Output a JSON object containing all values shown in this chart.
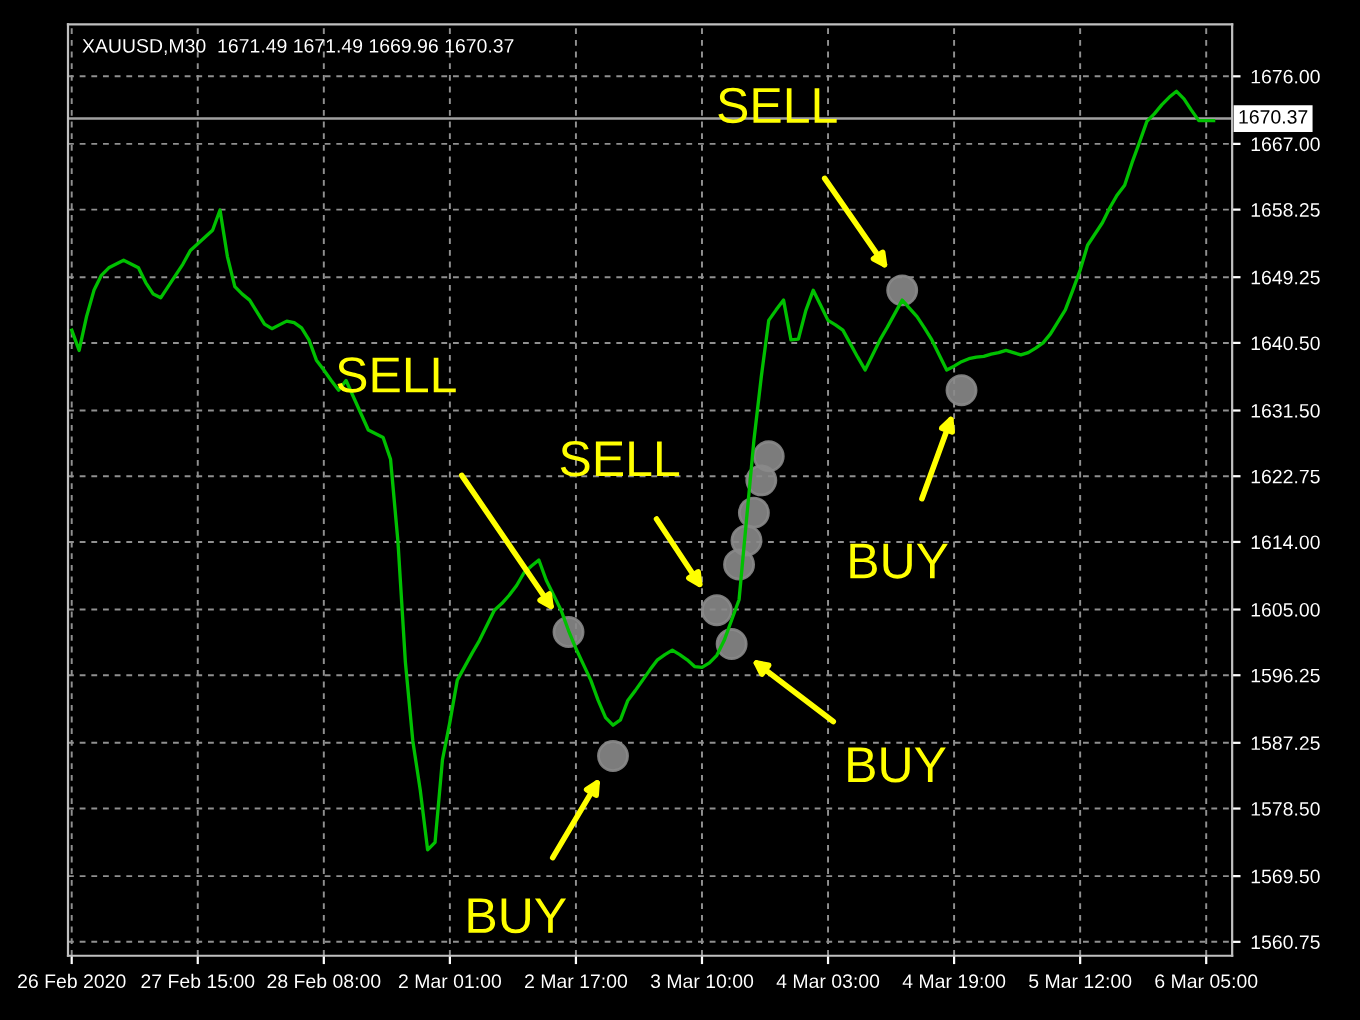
{
  "chart_data": {
    "type": "line",
    "title": "XAUUSD,M30  1671.49 1671.49 1669.96 1670.37",
    "categories": [
      "26 Feb 2020",
      null,
      null,
      null,
      null,
      null,
      null,
      null,
      null,
      null,
      null,
      null,
      null,
      null,
      null,
      null,
      null,
      "27 Feb 15:00",
      null,
      null,
      null,
      null,
      null,
      null,
      null,
      null,
      null,
      null,
      null,
      null,
      null,
      null,
      null,
      null,
      "28 Feb 08:00",
      null,
      null,
      null,
      null,
      null,
      null,
      null,
      null,
      null,
      null,
      null,
      null,
      null,
      null,
      null,
      null,
      "2 Mar 01:00",
      null,
      null,
      null,
      null,
      null,
      null,
      null,
      null,
      null,
      null,
      null,
      null,
      null,
      null,
      null,
      null,
      "2 Mar 17:00",
      null,
      null,
      null,
      null,
      null,
      null,
      null,
      null,
      null,
      null,
      null,
      null,
      null,
      null,
      null,
      null,
      "3 Mar 10:00",
      null,
      null,
      null,
      null,
      null,
      null,
      null,
      null,
      null,
      null,
      null,
      null,
      null,
      null,
      null,
      null,
      "4 Mar 03:00",
      null,
      null,
      null,
      null,
      null,
      null,
      null,
      null,
      null,
      null,
      null,
      null,
      null,
      null,
      null,
      null,
      "4 Mar 19:00",
      null,
      null,
      null,
      null,
      null,
      null,
      null,
      null,
      null,
      null,
      null,
      null,
      null,
      null,
      null,
      null,
      "5 Mar 12:00",
      null,
      null,
      null,
      null,
      null,
      null,
      null,
      null,
      null,
      null,
      null,
      null,
      null,
      null,
      null,
      null,
      "6 Mar 05:00",
      null,
      null
    ],
    "ylim": [
      1558.9,
      1682.9
    ],
    "yticks": [
      {
        "value": 1560.75,
        "label": "1560.75"
      },
      {
        "value": 1569.5,
        "label": "1569.50"
      },
      {
        "value": 1578.5,
        "label": "1578.50"
      },
      {
        "value": 1587.25,
        "label": "1587.25"
      },
      {
        "value": 1596.25,
        "label": "1596.25"
      },
      {
        "value": 1605,
        "label": "1605.00"
      },
      {
        "value": 1614,
        "label": "1614.00"
      },
      {
        "value": 1622.75,
        "label": "1622.75"
      },
      {
        "value": 1631.5,
        "label": "1631.50"
      },
      {
        "value": 1640.5,
        "label": "1640.50"
      },
      {
        "value": 1649.25,
        "label": "1649.25"
      },
      {
        "value": 1658.25,
        "label": "1658.25"
      },
      {
        "value": 1667,
        "label": "1667.00"
      },
      {
        "value": 1676,
        "label": "1676.00"
      }
    ],
    "grid": true,
    "line_style": "solid",
    "series": [
      {
        "color": "#00c000",
        "values": [
          1642.2,
          1639.5,
          1644,
          1647.5,
          1649.5,
          1650.5,
          1651,
          1651.5,
          1651,
          1650.5,
          1648.5,
          1647,
          1646.5,
          1648,
          1649.5,
          1651,
          1652.8,
          1653.7,
          1654.6,
          1655.5,
          1658.2,
          1652,
          1648,
          1647,
          1646.2,
          1644.6,
          1643,
          1642.4,
          1642.9,
          1643.4,
          1643.2,
          1642.5,
          1640.9,
          1638.2,
          1636.9,
          1635.5,
          1634.2,
          1635.5,
          1633.3,
          1631.1,
          1628.9,
          1628.4,
          1627.9,
          1625,
          1614,
          1598,
          1587.5,
          1581,
          1573,
          1574,
          1585,
          1590,
          1595.6,
          1597.4,
          1599.2,
          1600.9,
          1602.9,
          1604.9,
          1605.8,
          1606.9,
          1608.2,
          1609.9,
          1610.8,
          1611.6,
          1608.9,
          1606.9,
          1604.9,
          1602.2,
          1599.8,
          1597.7,
          1595.6,
          1592.9,
          1590.6,
          1589.6,
          1590.3,
          1592.9,
          1594.2,
          1595.6,
          1597,
          1598.3,
          1599,
          1599.6,
          1599,
          1598.3,
          1597.4,
          1597.3,
          1597.9,
          1598.9,
          1600.9,
          1603.6,
          1606.3,
          1616.9,
          1627.5,
          1636,
          1643.5,
          1644.9,
          1646.2,
          1640.9,
          1641,
          1644.8,
          1647.5,
          1645.5,
          1643.5,
          1642.9,
          1642.2,
          1640.4,
          1638.6,
          1636.9,
          1638.9,
          1640.9,
          1642.6,
          1644.4,
          1646.2,
          1645.1,
          1644,
          1642.5,
          1640.9,
          1638.9,
          1636.9,
          1637.4,
          1638,
          1638.4,
          1638.6,
          1638.7,
          1639,
          1639.2,
          1639.5,
          1639.2,
          1638.9,
          1639.2,
          1639.8,
          1640.5,
          1641.7,
          1643.3,
          1644.9,
          1647.5,
          1650.2,
          1653.5,
          1655,
          1656.5,
          1658.5,
          1660.2,
          1661.5,
          1664.5,
          1667.2,
          1670,
          1671,
          1672.2,
          1673.2,
          1674,
          1673,
          1671.5,
          1670.1,
          1670.1,
          1670.1,
          null
        ]
      },
      {
        "type": "scatter",
        "color": "#8a8a8a",
        "marker": "circle",
        "values": [
          null,
          null,
          null,
          null,
          null,
          null,
          null,
          null,
          null,
          null,
          null,
          null,
          null,
          null,
          null,
          null,
          null,
          null,
          null,
          null,
          null,
          null,
          null,
          null,
          null,
          null,
          null,
          null,
          null,
          null,
          null,
          null,
          null,
          null,
          null,
          null,
          null,
          null,
          null,
          null,
          null,
          null,
          null,
          null,
          null,
          null,
          null,
          null,
          null,
          null,
          null,
          null,
          null,
          null,
          null,
          null,
          null,
          null,
          null,
          null,
          null,
          null,
          null,
          null,
          null,
          null,
          null,
          1602.0,
          null,
          null,
          null,
          null,
          null,
          1585.5,
          null,
          null,
          null,
          null,
          null,
          null,
          null,
          null,
          null,
          null,
          null,
          null,
          null,
          1604.9,
          null,
          1600.4,
          1611.0,
          1614.2,
          1617.9,
          1622.2,
          1625.4,
          null,
          null,
          null,
          null,
          null,
          null,
          null,
          null,
          null,
          null,
          null,
          null,
          null,
          null,
          null,
          null,
          null,
          1647.5,
          null,
          null,
          null,
          null,
          null,
          null,
          null,
          1634.2,
          null,
          null,
          null,
          null,
          null,
          null,
          null,
          null,
          null,
          null,
          null,
          null,
          null,
          null,
          null,
          null,
          null,
          null,
          null,
          null,
          null,
          null,
          null,
          null,
          null,
          null,
          null,
          null,
          null,
          null,
          null,
          null,
          null,
          null,
          null
        ]
      }
    ],
    "ref_lines": [
      {
        "axis": "y",
        "value": 1670.37,
        "label": "1670.37",
        "color": "#a0a0a0"
      }
    ],
    "annotations": [
      "SELL",
      "BUY",
      "SELL",
      "BUY",
      "SELL",
      "BUY"
    ]
  }
}
